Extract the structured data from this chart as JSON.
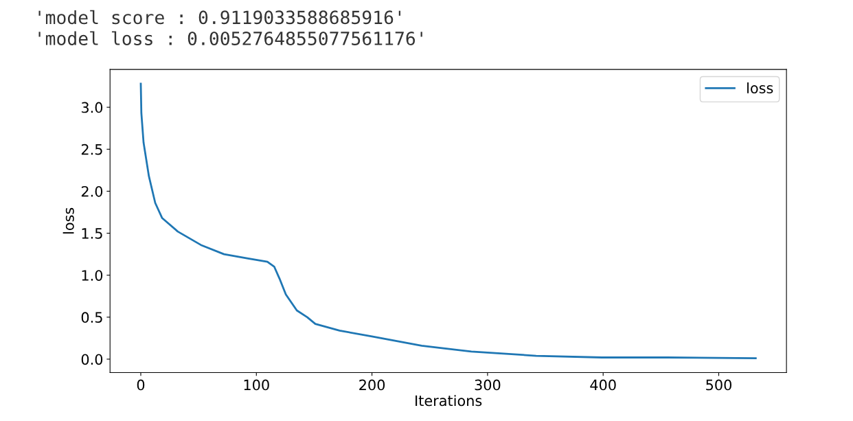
{
  "chart_data": {
    "type": "line",
    "annotations": [
      "'model score : 0.9119033588685916'",
      "'model loss : 0.0052764855077561176'"
    ],
    "xlabel": "Iterations",
    "ylabel": "loss",
    "x": [
      0,
      0.5,
      2.4,
      7,
      12.5,
      18.5,
      32,
      52,
      72,
      92,
      109.5,
      115.5,
      120,
      125.5,
      135,
      144,
      151,
      172,
      200,
      243,
      286,
      342,
      399,
      455,
      532
    ],
    "series": [
      {
        "name": "loss",
        "color": "#1f77b4",
        "values": [
          3.28,
          2.93,
          2.58,
          2.18,
          1.86,
          1.68,
          1.52,
          1.36,
          1.25,
          1.2,
          1.16,
          1.1,
          0.96,
          0.77,
          0.58,
          0.5,
          0.42,
          0.34,
          0.27,
          0.16,
          0.09,
          0.04,
          0.02,
          0.02,
          0.01
        ]
      }
    ],
    "xlim": [
      -26.6,
      558.6
    ],
    "ylim": [
      -0.16,
      3.45
    ],
    "xticks": [
      0,
      100,
      200,
      300,
      400,
      500
    ],
    "yticks": [
      {
        "value": 0,
        "label": "0.0"
      },
      0.5,
      {
        "value": 1,
        "label": "1.0"
      },
      1.5,
      {
        "value": 2,
        "label": "2.0"
      },
      2.5,
      {
        "value": 3,
        "label": "3.0"
      }
    ],
    "legend": "top right",
    "grid": false,
    "marker": "none",
    "line_style": "solid"
  }
}
